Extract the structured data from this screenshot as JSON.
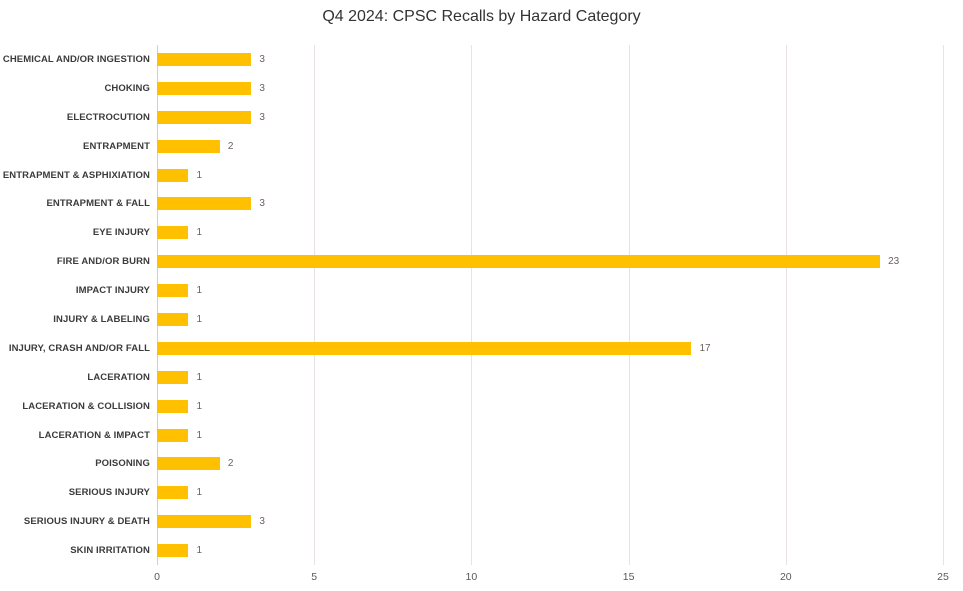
{
  "title": "Q4 2024: CPSC Recalls by Hazard Category",
  "chart_data": {
    "type": "bar",
    "orientation": "horizontal",
    "title": "Q4 2024: CPSC Recalls by Hazard Category",
    "categories": [
      "CHEMICAL AND/OR INGESTION",
      "CHOKING",
      "ELECTROCUTION",
      "ENTRAPMENT",
      "ENTRAPMENT & ASPHIXIATION",
      "ENTRAPMENT & FALL",
      "EYE INJURY",
      "FIRE AND/OR BURN",
      "IMPACT INJURY",
      "INJURY & LABELING",
      "INJURY, CRASH AND/OR FALL",
      "LACERATION",
      "LACERATION & COLLISION",
      "LACERATION & IMPACT",
      "POISONING",
      "SERIOUS INJURY",
      "SERIOUS INJURY & DEATH",
      "SKIN IRRITATION"
    ],
    "values": [
      3,
      3,
      3,
      2,
      1,
      3,
      1,
      23,
      1,
      1,
      17,
      1,
      1,
      1,
      2,
      1,
      3,
      1
    ],
    "xlabel": "",
    "ylabel": "",
    "xlim": [
      0,
      25
    ],
    "xticks": [
      0,
      5,
      10,
      15,
      20,
      25
    ],
    "grid": "vertical-gridlines",
    "legend": "none",
    "data_labels": "outside-end",
    "colors": {
      "bar": "#FFC000",
      "value_label": "#6d5f5f",
      "tick_label": "#595959",
      "gridline": "#e9e2e2",
      "category_label": "#3b3b3b",
      "title": "#333333",
      "background": "#ffffff"
    }
  }
}
